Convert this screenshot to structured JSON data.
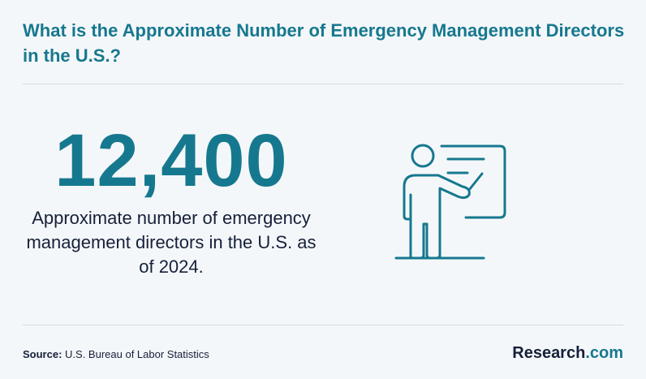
{
  "title": "What is the Approximate Number of Emergency Management Directors in the U.S.?",
  "stat": {
    "value": "12,400",
    "description": "Approximate number of emergency management directors in the U.S. as of 2024."
  },
  "illustration": {
    "icon": "presenter-at-whiteboard-icon"
  },
  "source": {
    "label": "Source:",
    "text": "U.S. Bureau of Labor Statistics"
  },
  "brand": {
    "name": "Research",
    "suffix": ".com"
  },
  "colors": {
    "accent": "#16788f",
    "text": "#16203a",
    "background": "#f4f7f9",
    "divider": "#d8dde1"
  }
}
